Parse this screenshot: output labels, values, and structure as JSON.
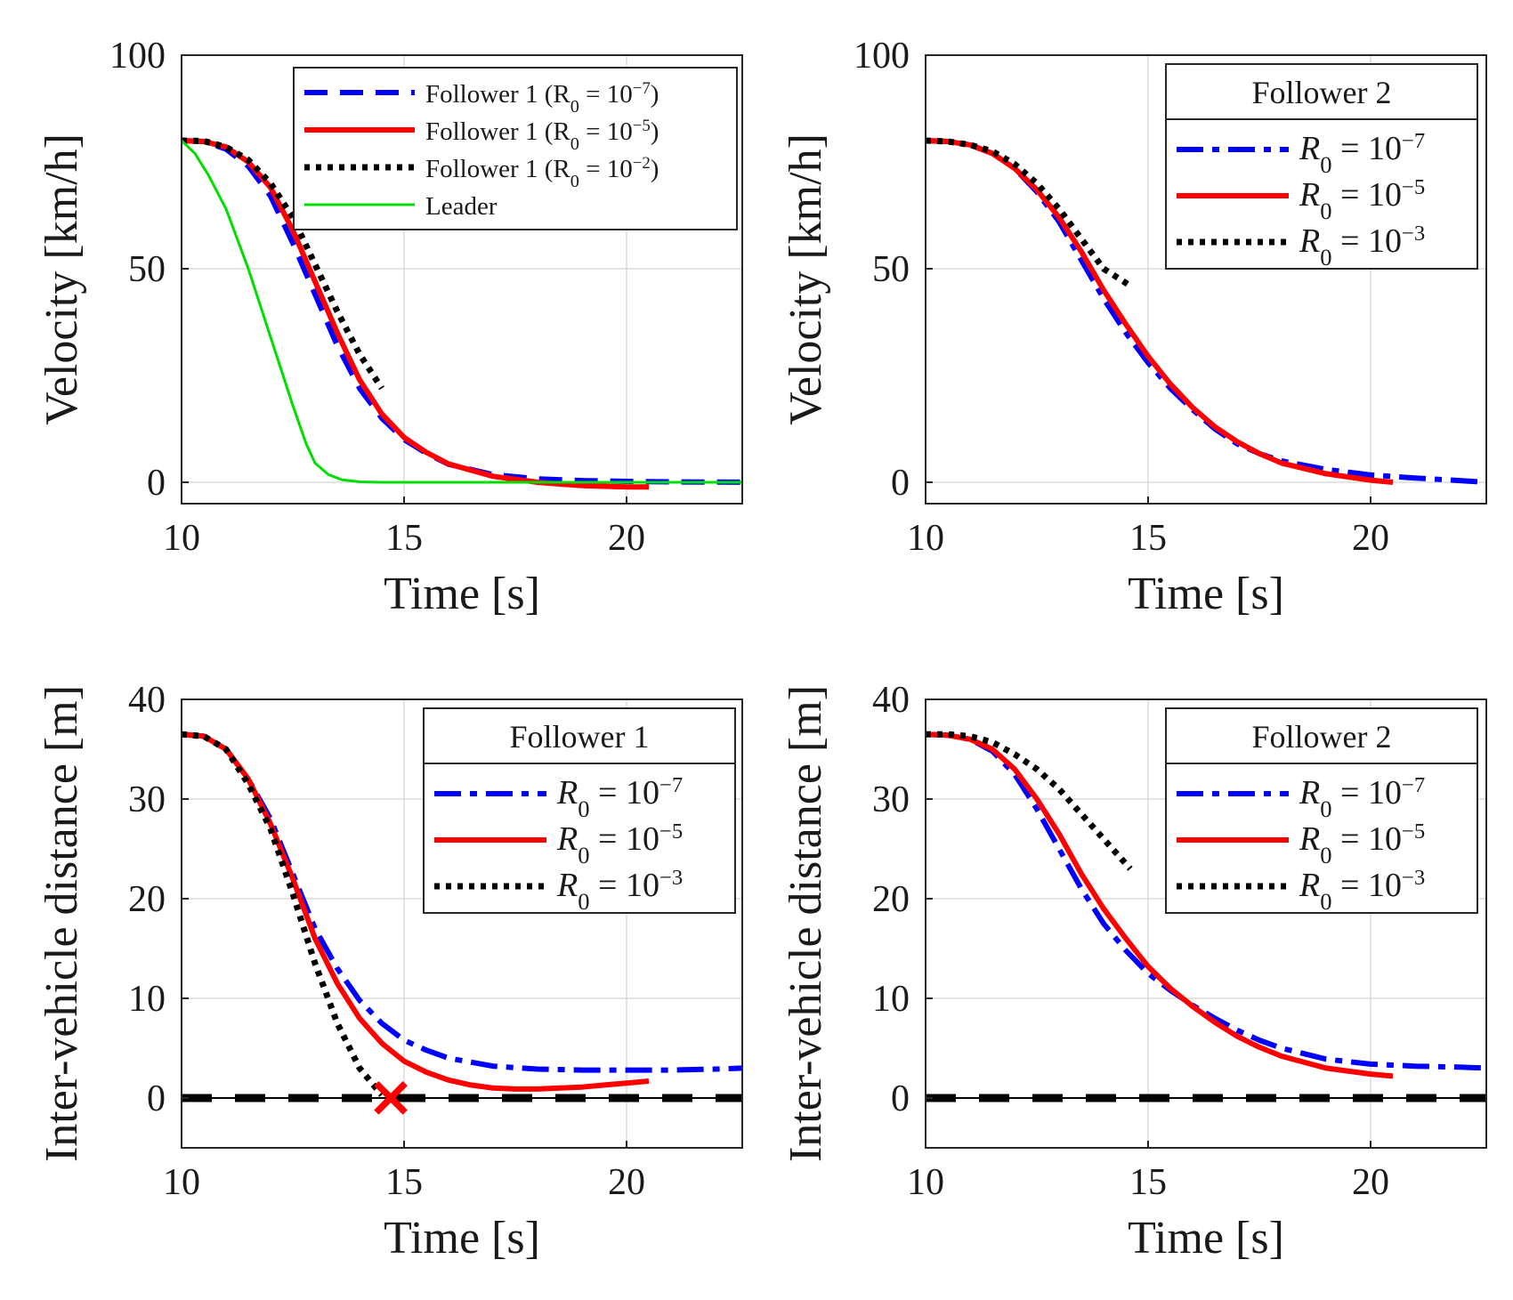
{
  "chart_data": [
    {
      "id": "p1",
      "type": "line",
      "xlabel": "Time [s]",
      "ylabel": "Velocity [km/h]",
      "xlim": [
        10,
        22.6
      ],
      "ylim": [
        -5,
        100
      ],
      "xticks": [
        "10",
        "15",
        "20"
      ],
      "yticks": [
        "0",
        "50",
        "100"
      ],
      "grid": true,
      "legend": {
        "placement": "top-right",
        "title": ""
      },
      "series": [
        {
          "name": "Follower 1 (R0 = 10^-7)",
          "label": "Follower 1 (R",
          "sub": "0",
          "eq": " = 10",
          "sup": "−7",
          "close": ")",
          "color": "#0000ff",
          "dash": "dash",
          "x": [
            10,
            10.5,
            11,
            11.5,
            12,
            12.5,
            13,
            13.5,
            14,
            14.5,
            15,
            15.5,
            16,
            17,
            18,
            19,
            20,
            21,
            22,
            22.6
          ],
          "y": [
            80,
            79.8,
            78,
            74,
            67,
            56,
            44,
            32,
            22,
            15,
            10,
            6.8,
            4.2,
            1.8,
            0.8,
            0.4,
            0.2,
            0.1,
            0.05,
            0.02
          ]
        },
        {
          "name": "Follower 1 (R0 = 10^-5)",
          "label": "Follower 1 (R",
          "sub": "0",
          "eq": " = 10",
          "sup": "−5",
          "close": ")",
          "color": "#ff0000",
          "dash": "solid",
          "x": [
            10,
            10.5,
            11,
            11.5,
            12,
            12.5,
            13,
            13.5,
            14,
            14.5,
            15,
            15.5,
            16,
            17,
            18,
            19,
            20,
            20.5
          ],
          "y": [
            80,
            79.8,
            78.5,
            75,
            69,
            59,
            47,
            35,
            24,
            16,
            10.5,
            7,
            4.3,
            1.4,
            0,
            -0.8,
            -1.1,
            -1.1
          ]
        },
        {
          "name": "Follower 1 (R0 = 10^-2)",
          "label": "Follower 1 (R",
          "sub": "0",
          "eq": " = 10",
          "sup": "−2",
          "close": ")",
          "color": "#000000",
          "dash": "dot",
          "x": [
            10,
            10.5,
            11,
            11.5,
            12,
            12.5,
            13,
            13.5,
            14,
            14.5
          ],
          "y": [
            80,
            79.9,
            78.5,
            75.5,
            70,
            62,
            51,
            40,
            30,
            22
          ]
        },
        {
          "name": "Leader",
          "label": "Leader",
          "sub": "",
          "eq": "",
          "sup": "",
          "close": "",
          "color": "#00dd00",
          "dash": "solid-thin",
          "x": [
            10,
            10.3,
            10.6,
            11,
            11.5,
            12,
            12.5,
            12.8,
            13,
            13.3,
            13.6,
            14,
            14.5,
            15,
            16,
            18,
            20,
            22.6
          ],
          "y": [
            80,
            77,
            72,
            64,
            50,
            34,
            18,
            9,
            4.5,
            1.8,
            0.6,
            0.1,
            0,
            0,
            0,
            0,
            0,
            0
          ]
        }
      ]
    },
    {
      "id": "p2",
      "type": "line",
      "xlabel": "Time [s]",
      "ylabel": "Velocity [km/h]",
      "xlim": [
        10,
        22.6
      ],
      "ylim": [
        -5,
        100
      ],
      "xticks": [
        "10",
        "15",
        "20"
      ],
      "yticks": [
        "0",
        "50",
        "100"
      ],
      "grid": true,
      "legend": {
        "placement": "top-right",
        "title": "Follower 2"
      },
      "series": [
        {
          "name": "R0 = 10^-7",
          "label": "R",
          "sub": "0",
          "eq": " = 10",
          "sup": "−7",
          "close": "",
          "color": "#0000ff",
          "dash": "dashdot",
          "x": [
            10,
            10.5,
            11,
            11.5,
            12,
            12.5,
            13,
            13.5,
            14,
            14.5,
            15,
            15.5,
            16,
            16.5,
            17,
            17.5,
            18,
            19,
            20,
            21,
            22,
            22.6
          ],
          "y": [
            80,
            79.8,
            79,
            77,
            73.5,
            68,
            61,
            52,
            43,
            35,
            28,
            22,
            17,
            12.5,
            9,
            6.7,
            5,
            3,
            1.7,
            1,
            0.4,
            0
          ]
        },
        {
          "name": "R0 = 10^-5",
          "label": "R",
          "sub": "0",
          "eq": " = 10",
          "sup": "−5",
          "close": "",
          "color": "#ff0000",
          "dash": "solid",
          "x": [
            10,
            10.5,
            11,
            11.5,
            12,
            12.5,
            13,
            13.5,
            14,
            14.5,
            15,
            15.5,
            16,
            16.5,
            17,
            17.5,
            18,
            19,
            20,
            20.5
          ],
          "y": [
            80,
            79.8,
            79,
            77,
            73.5,
            68.5,
            62,
            54,
            45,
            37,
            29.5,
            23,
            17.5,
            13,
            9.5,
            6.7,
            4.5,
            2,
            0.5,
            0
          ]
        },
        {
          "name": "R0 = 10^-3",
          "label": "R",
          "sub": "0",
          "eq": " = 10",
          "sup": "−3",
          "close": "",
          "color": "#000000",
          "dash": "dot",
          "x": [
            10,
            10.5,
            11,
            11.5,
            12,
            12.5,
            13,
            13.5,
            14,
            14.6
          ],
          "y": [
            80,
            79.8,
            79,
            77.5,
            74.5,
            70,
            64,
            57,
            50,
            46
          ]
        }
      ]
    },
    {
      "id": "p3",
      "type": "line",
      "xlabel": "Time [s]",
      "ylabel": "Inter-vehicle distance [m]",
      "xlim": [
        10,
        22.6
      ],
      "ylim": [
        -5,
        40
      ],
      "xticks": [
        "10",
        "15",
        "20"
      ],
      "yticks": [
        "0",
        "10",
        "20",
        "30",
        "40"
      ],
      "grid": true,
      "legend": {
        "placement": "top-right",
        "title": "Follower 1"
      },
      "zero_line": {
        "y": 0,
        "color": "#000000"
      },
      "collision_marker": {
        "x": 14.7,
        "y": 0,
        "symbol": "×",
        "color": "#ff0000"
      },
      "series": [
        {
          "name": "R0 = 10^-7",
          "label": "R",
          "sub": "0",
          "eq": " = 10",
          "sup": "−7",
          "close": "",
          "color": "#0000ff",
          "dash": "dashdot",
          "x": [
            10,
            10.5,
            11,
            11.5,
            12,
            12.5,
            13,
            13.5,
            14,
            14.5,
            15,
            15.5,
            16,
            17,
            18,
            19,
            20,
            21,
            22,
            22.6
          ],
          "y": [
            36.5,
            36.3,
            35,
            32,
            28,
            22.5,
            17,
            13,
            9.8,
            7.5,
            5.8,
            4.8,
            4,
            3.2,
            2.9,
            2.8,
            2.8,
            2.8,
            2.9,
            3
          ]
        },
        {
          "name": "R0 = 10^-5",
          "label": "R",
          "sub": "0",
          "eq": " = 10",
          "sup": "−5",
          "close": "",
          "color": "#ff0000",
          "dash": "solid",
          "x": [
            10,
            10.5,
            11,
            11.5,
            12,
            12.5,
            13,
            13.5,
            14,
            14.5,
            15,
            15.5,
            16,
            16.5,
            17,
            17.5,
            18,
            18.5,
            19,
            19.5,
            20,
            20.5
          ],
          "y": [
            36.5,
            36.3,
            35,
            32,
            27.5,
            22,
            16,
            11.5,
            8,
            5.5,
            3.7,
            2.6,
            1.8,
            1.3,
            1,
            0.9,
            0.9,
            1,
            1.1,
            1.3,
            1.5,
            1.7
          ]
        },
        {
          "name": "R0 = 10^-3",
          "label": "R",
          "sub": "0",
          "eq": " = 10",
          "sup": "−3",
          "close": "",
          "color": "#000000",
          "dash": "dot",
          "x": [
            10,
            10.5,
            11,
            11.5,
            12,
            12.5,
            13,
            13.5,
            14,
            14.5
          ],
          "y": [
            36.5,
            36.3,
            35,
            31.5,
            27,
            20.5,
            13.5,
            7.5,
            3,
            0.3
          ]
        }
      ]
    },
    {
      "id": "p4",
      "type": "line",
      "xlabel": "Time [s]",
      "ylabel": "Inter-vehicle distance [m]",
      "xlim": [
        10,
        22.6
      ],
      "ylim": [
        -5,
        40
      ],
      "xticks": [
        "10",
        "15",
        "20"
      ],
      "yticks": [
        "0",
        "10",
        "20",
        "30",
        "40"
      ],
      "grid": true,
      "legend": {
        "placement": "top-right",
        "title": "Follower 2"
      },
      "zero_line": {
        "y": 0,
        "color": "#000000"
      },
      "series": [
        {
          "name": "R0 = 10^-7",
          "label": "R",
          "sub": "0",
          "eq": " = 10",
          "sup": "−7",
          "close": "",
          "color": "#0000ff",
          "dash": "dashdot",
          "x": [
            10,
            10.5,
            11,
            11.5,
            12,
            12.5,
            13,
            13.5,
            14,
            14.5,
            15,
            15.5,
            16,
            16.5,
            17,
            17.5,
            18,
            19,
            20,
            21,
            22,
            22.6
          ],
          "y": [
            36.5,
            36.4,
            36,
            34.8,
            32.5,
            29,
            25,
            21,
            17.5,
            14.8,
            12.5,
            10.8,
            9.3,
            8,
            6.8,
            5.8,
            5,
            3.9,
            3.4,
            3.2,
            3.1,
            3
          ]
        },
        {
          "name": "R0 = 10^-5",
          "label": "R",
          "sub": "0",
          "eq": " = 10",
          "sup": "−5",
          "close": "",
          "color": "#ff0000",
          "dash": "solid",
          "x": [
            10,
            10.5,
            11,
            11.5,
            12,
            12.5,
            13,
            13.5,
            14,
            14.5,
            15,
            15.5,
            16,
            16.5,
            17,
            17.5,
            18,
            19,
            20,
            20.5
          ],
          "y": [
            36.5,
            36.4,
            36,
            35,
            33,
            30,
            26.5,
            22.5,
            19,
            16,
            13.2,
            11,
            9.2,
            7.6,
            6.2,
            5.1,
            4.2,
            3,
            2.4,
            2.2
          ]
        },
        {
          "name": "R0 = 10^-3",
          "label": "R",
          "sub": "0",
          "eq": " = 10",
          "sup": "−3",
          "close": "",
          "color": "#000000",
          "dash": "dot",
          "x": [
            10,
            10.5,
            11,
            11.5,
            12,
            12.5,
            13,
            13.5,
            14,
            14.6
          ],
          "y": [
            36.5,
            36.5,
            36.3,
            35.7,
            34.5,
            33,
            31,
            28.5,
            26,
            23
          ]
        }
      ]
    }
  ]
}
